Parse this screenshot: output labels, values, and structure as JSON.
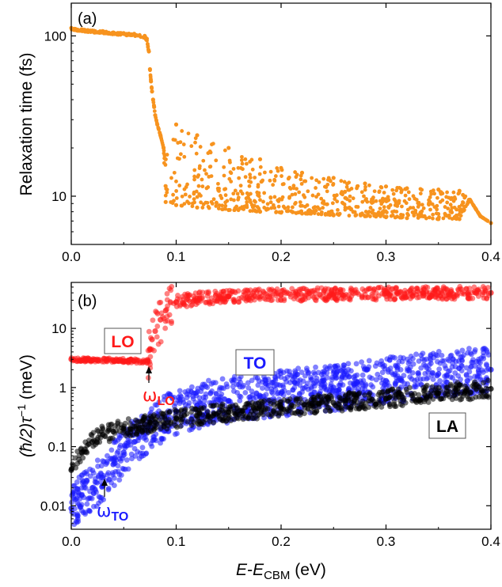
{
  "chart_data": [
    {
      "panel_label": "(a)",
      "type": "scatter",
      "xlabel": "",
      "ylabel": "Relaxation time (fs)",
      "xlim": [
        0,
        0.4
      ],
      "ylim": [
        5,
        160
      ],
      "yscale": "log",
      "x_ticks": [
        "0.0",
        "0.1",
        "0.2",
        "0.3",
        "0.4"
      ],
      "y_ticks": [
        "10",
        "100"
      ],
      "grid": false,
      "color": "#f7931e",
      "series": [
        {
          "x": [
            0.0,
            0.01,
            0.02,
            0.03,
            0.04,
            0.05,
            0.06,
            0.07,
            0.072,
            0.074,
            0.075,
            0.076,
            0.077,
            0.078,
            0.079,
            0.08,
            0.082,
            0.085,
            0.088,
            0.09,
            0.09,
            0.1,
            0.1,
            0.12,
            0.12,
            0.15,
            0.15,
            0.18,
            0.18,
            0.2,
            0.2,
            0.22,
            0.22,
            0.25,
            0.25,
            0.28,
            0.28,
            0.3,
            0.3,
            0.32,
            0.32,
            0.35,
            0.35,
            0.37,
            0.37,
            0.38,
            0.39,
            0.4
          ],
          "y": [
            112,
            110,
            108,
            107,
            105,
            104,
            103,
            100,
            96,
            80,
            62,
            52,
            45,
            40,
            36,
            32,
            28,
            24,
            20,
            17,
            9.2,
            28,
            8.8,
            24,
            8.5,
            20,
            8.2,
            17,
            8.0,
            15,
            7.9,
            14,
            7.8,
            13,
            7.6,
            12,
            7.5,
            11.5,
            7.4,
            11.2,
            7.3,
            11,
            7.2,
            10.8,
            7.2,
            9.5,
            7.5,
            6.8
          ]
        }
      ]
    },
    {
      "panel_label": "(b)",
      "type": "scatter",
      "xlabel": "E-ECBM (eV)",
      "ylabel": "(ħ/2)τ⁻¹ (meV)",
      "xlim": [
        0,
        0.4
      ],
      "ylim": [
        0.004,
        60
      ],
      "yscale": "log",
      "x_ticks": [
        "0.0",
        "0.1",
        "0.2",
        "0.3",
        "0.4"
      ],
      "y_ticks": [
        "0.01",
        "0.1",
        "1",
        "10"
      ],
      "grid": false,
      "series": [
        {
          "name": "LO",
          "color": "#ff1a1a",
          "x": [
            0.0,
            0.02,
            0.04,
            0.06,
            0.073,
            0.075,
            0.077,
            0.08,
            0.085,
            0.09,
            0.1,
            0.12,
            0.15,
            0.2,
            0.25,
            0.3,
            0.35,
            0.4
          ],
          "y": [
            3.0,
            2.9,
            2.9,
            2.8,
            2.8,
            4.5,
            6.5,
            9.0,
            14,
            20,
            28,
            32,
            35,
            37,
            38,
            39,
            40,
            40
          ]
        },
        {
          "name": "TO",
          "color": "#1a1aff",
          "x": [
            0.0,
            0.01,
            0.02,
            0.03,
            0.04,
            0.05,
            0.06,
            0.08,
            0.1,
            0.12,
            0.15,
            0.2,
            0.25,
            0.3,
            0.35,
            0.4
          ],
          "y": [
            0.009,
            0.015,
            0.02,
            0.03,
            0.05,
            0.08,
            0.12,
            0.25,
            0.4,
            0.5,
            0.6,
            0.8,
            1.0,
            1.3,
            1.7,
            2.0
          ]
        },
        {
          "name": "LA",
          "color": "#000000",
          "x": [
            0.0,
            0.01,
            0.02,
            0.03,
            0.04,
            0.05,
            0.06,
            0.07,
            0.08,
            0.1,
            0.12,
            0.15,
            0.2,
            0.25,
            0.3,
            0.35,
            0.4
          ],
          "y": [
            0.04,
            0.08,
            0.12,
            0.16,
            0.18,
            0.2,
            0.22,
            0.24,
            0.26,
            0.3,
            0.33,
            0.38,
            0.45,
            0.55,
            0.65,
            0.8,
            0.95
          ]
        }
      ],
      "annotations": {
        "lo_box": "LO",
        "to_box": "TO",
        "la_box": "LA",
        "omega": "ω",
        "omega_lo_sub": "LO",
        "omega_to_sub": "TO",
        "omega_lo_x": 0.075,
        "omega_to_x": 0.032
      }
    }
  ],
  "xlabel_parts": {
    "e": "E",
    "dash": "-",
    "ecbm": "E",
    "cbm_sub": "CBM",
    "unit": " (eV)"
  },
  "ylabel_b_parts": {
    "text": "(ħ/2)τ",
    "sup": "−1",
    "unit": " (meV)"
  }
}
